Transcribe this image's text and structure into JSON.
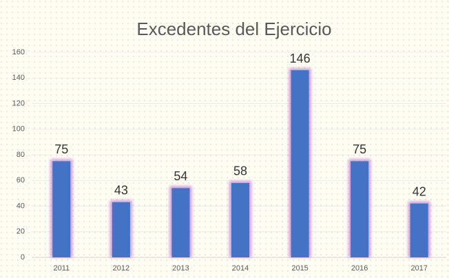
{
  "chart_data": {
    "type": "bar",
    "title": "Excedentes del Ejercicio",
    "categories": [
      "2011",
      "2012",
      "2013",
      "2014",
      "2015",
      "2016",
      "2017"
    ],
    "values": [
      75,
      43,
      54,
      58,
      146,
      75,
      42
    ],
    "color": "#4472c4",
    "ylim": [
      0,
      160
    ],
    "yticks": [
      0,
      20,
      40,
      60,
      80,
      100,
      120,
      140,
      160
    ],
    "grid": true
  }
}
